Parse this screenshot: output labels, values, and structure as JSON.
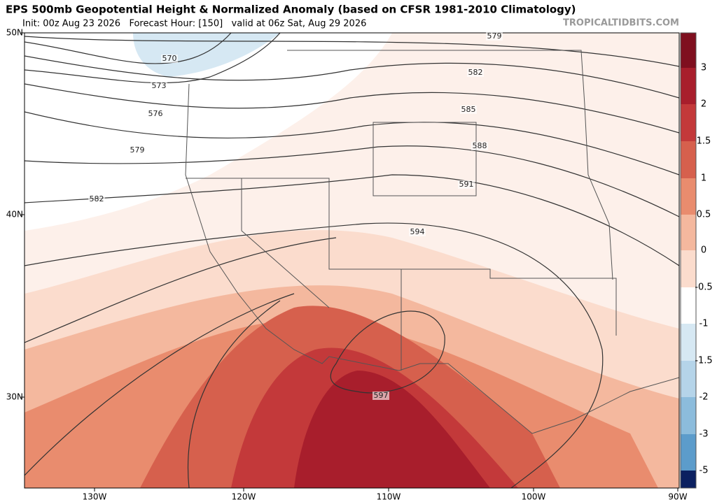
{
  "header": {
    "title": "EPS 500mb Geopotential Height & Normalized Anomaly (based on CFSR 1981-2010 Climatology)",
    "subtitle": "Init: 00z Aug 23 2026   Forecast Hour: [150]   valid at 06z Sat, Aug 29 2026",
    "watermark": "TROPICALTIDBITS.COM"
  },
  "map": {
    "lat_labels": [
      "50N",
      "40N",
      "30N"
    ],
    "lon_labels": [
      "130W",
      "120W",
      "110W",
      "100W",
      "90W"
    ],
    "contour_labels": [
      579,
      582,
      585,
      588,
      591,
      594,
      597,
      570,
      573,
      576,
      579,
      582
    ]
  },
  "colorbar": {
    "labels": [
      3,
      2,
      1.5,
      1,
      0.5,
      0,
      -0.5,
      -1,
      -1.5,
      -2,
      -3,
      -5
    ]
  }
}
